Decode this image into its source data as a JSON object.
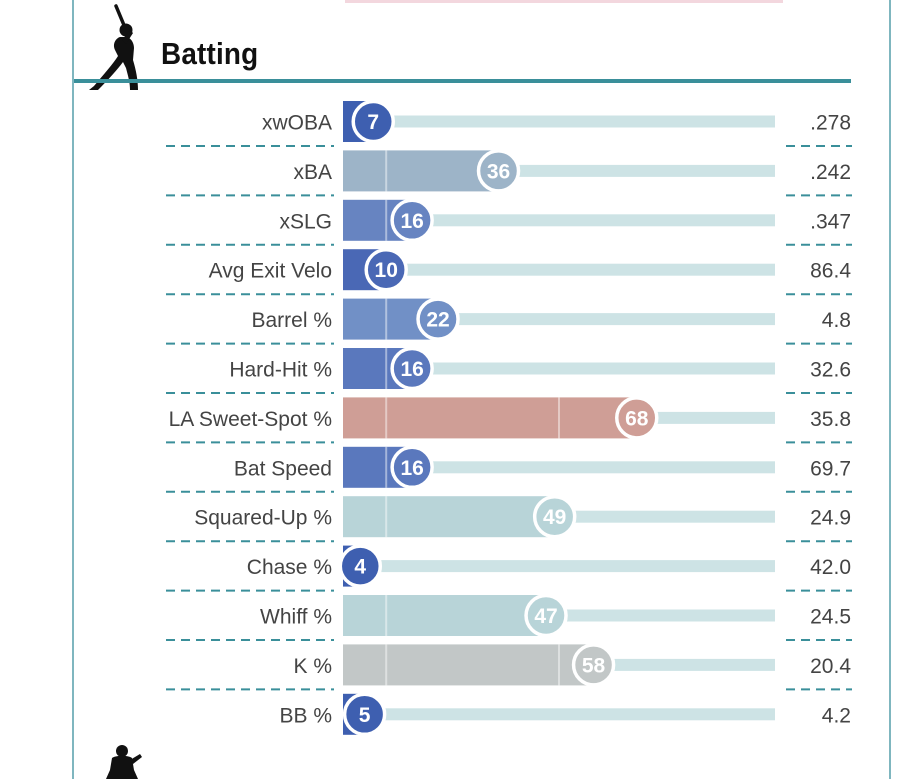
{
  "section": {
    "title": "Batting",
    "icons": {
      "header": "batter-silhouette-icon",
      "next_section": "pitcher-silhouette-icon"
    }
  },
  "colors": {
    "dark_blue": "#3e5fb0",
    "mid_blue": "#6784c1",
    "light_blue_grey": "#9db4c8",
    "teal_grey": "#b8d4d8",
    "grey": "#c2c7c7",
    "salmon": "#cf9e96",
    "track": "#cde3e5",
    "divider": "#3a8f9a"
  },
  "chart_data": {
    "type": "bar",
    "categories": [
      "xwOBA",
      "xBA",
      "xSLG",
      "Avg Exit Velo",
      "Barrel %",
      "Hard-Hit %",
      "LA Sweet-Spot %",
      "Bat Speed",
      "Squared-Up %",
      "Chase %",
      "Whiff %",
      "K %",
      "BB %"
    ],
    "values": [
      7,
      36,
      16,
      10,
      22,
      16,
      68,
      16,
      49,
      4,
      47,
      58,
      5
    ],
    "stat_values": [
      ".278",
      ".242",
      ".347",
      "86.4",
      "4.8",
      "32.6",
      "35.8",
      "69.7",
      "24.9",
      "42.0",
      "24.5",
      "20.4",
      "4.2"
    ],
    "bar_colors": [
      "#3e5fb0",
      "#9db4c8",
      "#6784c1",
      "#4a68b5",
      "#7190c6",
      "#5a78bd",
      "#cf9e96",
      "#5a78bd",
      "#b8d4d8",
      "#3e5fb0",
      "#b8d4d8",
      "#c2c7c7",
      "#3e5fb0"
    ],
    "xlim": [
      0,
      100
    ],
    "title": "Batting"
  }
}
